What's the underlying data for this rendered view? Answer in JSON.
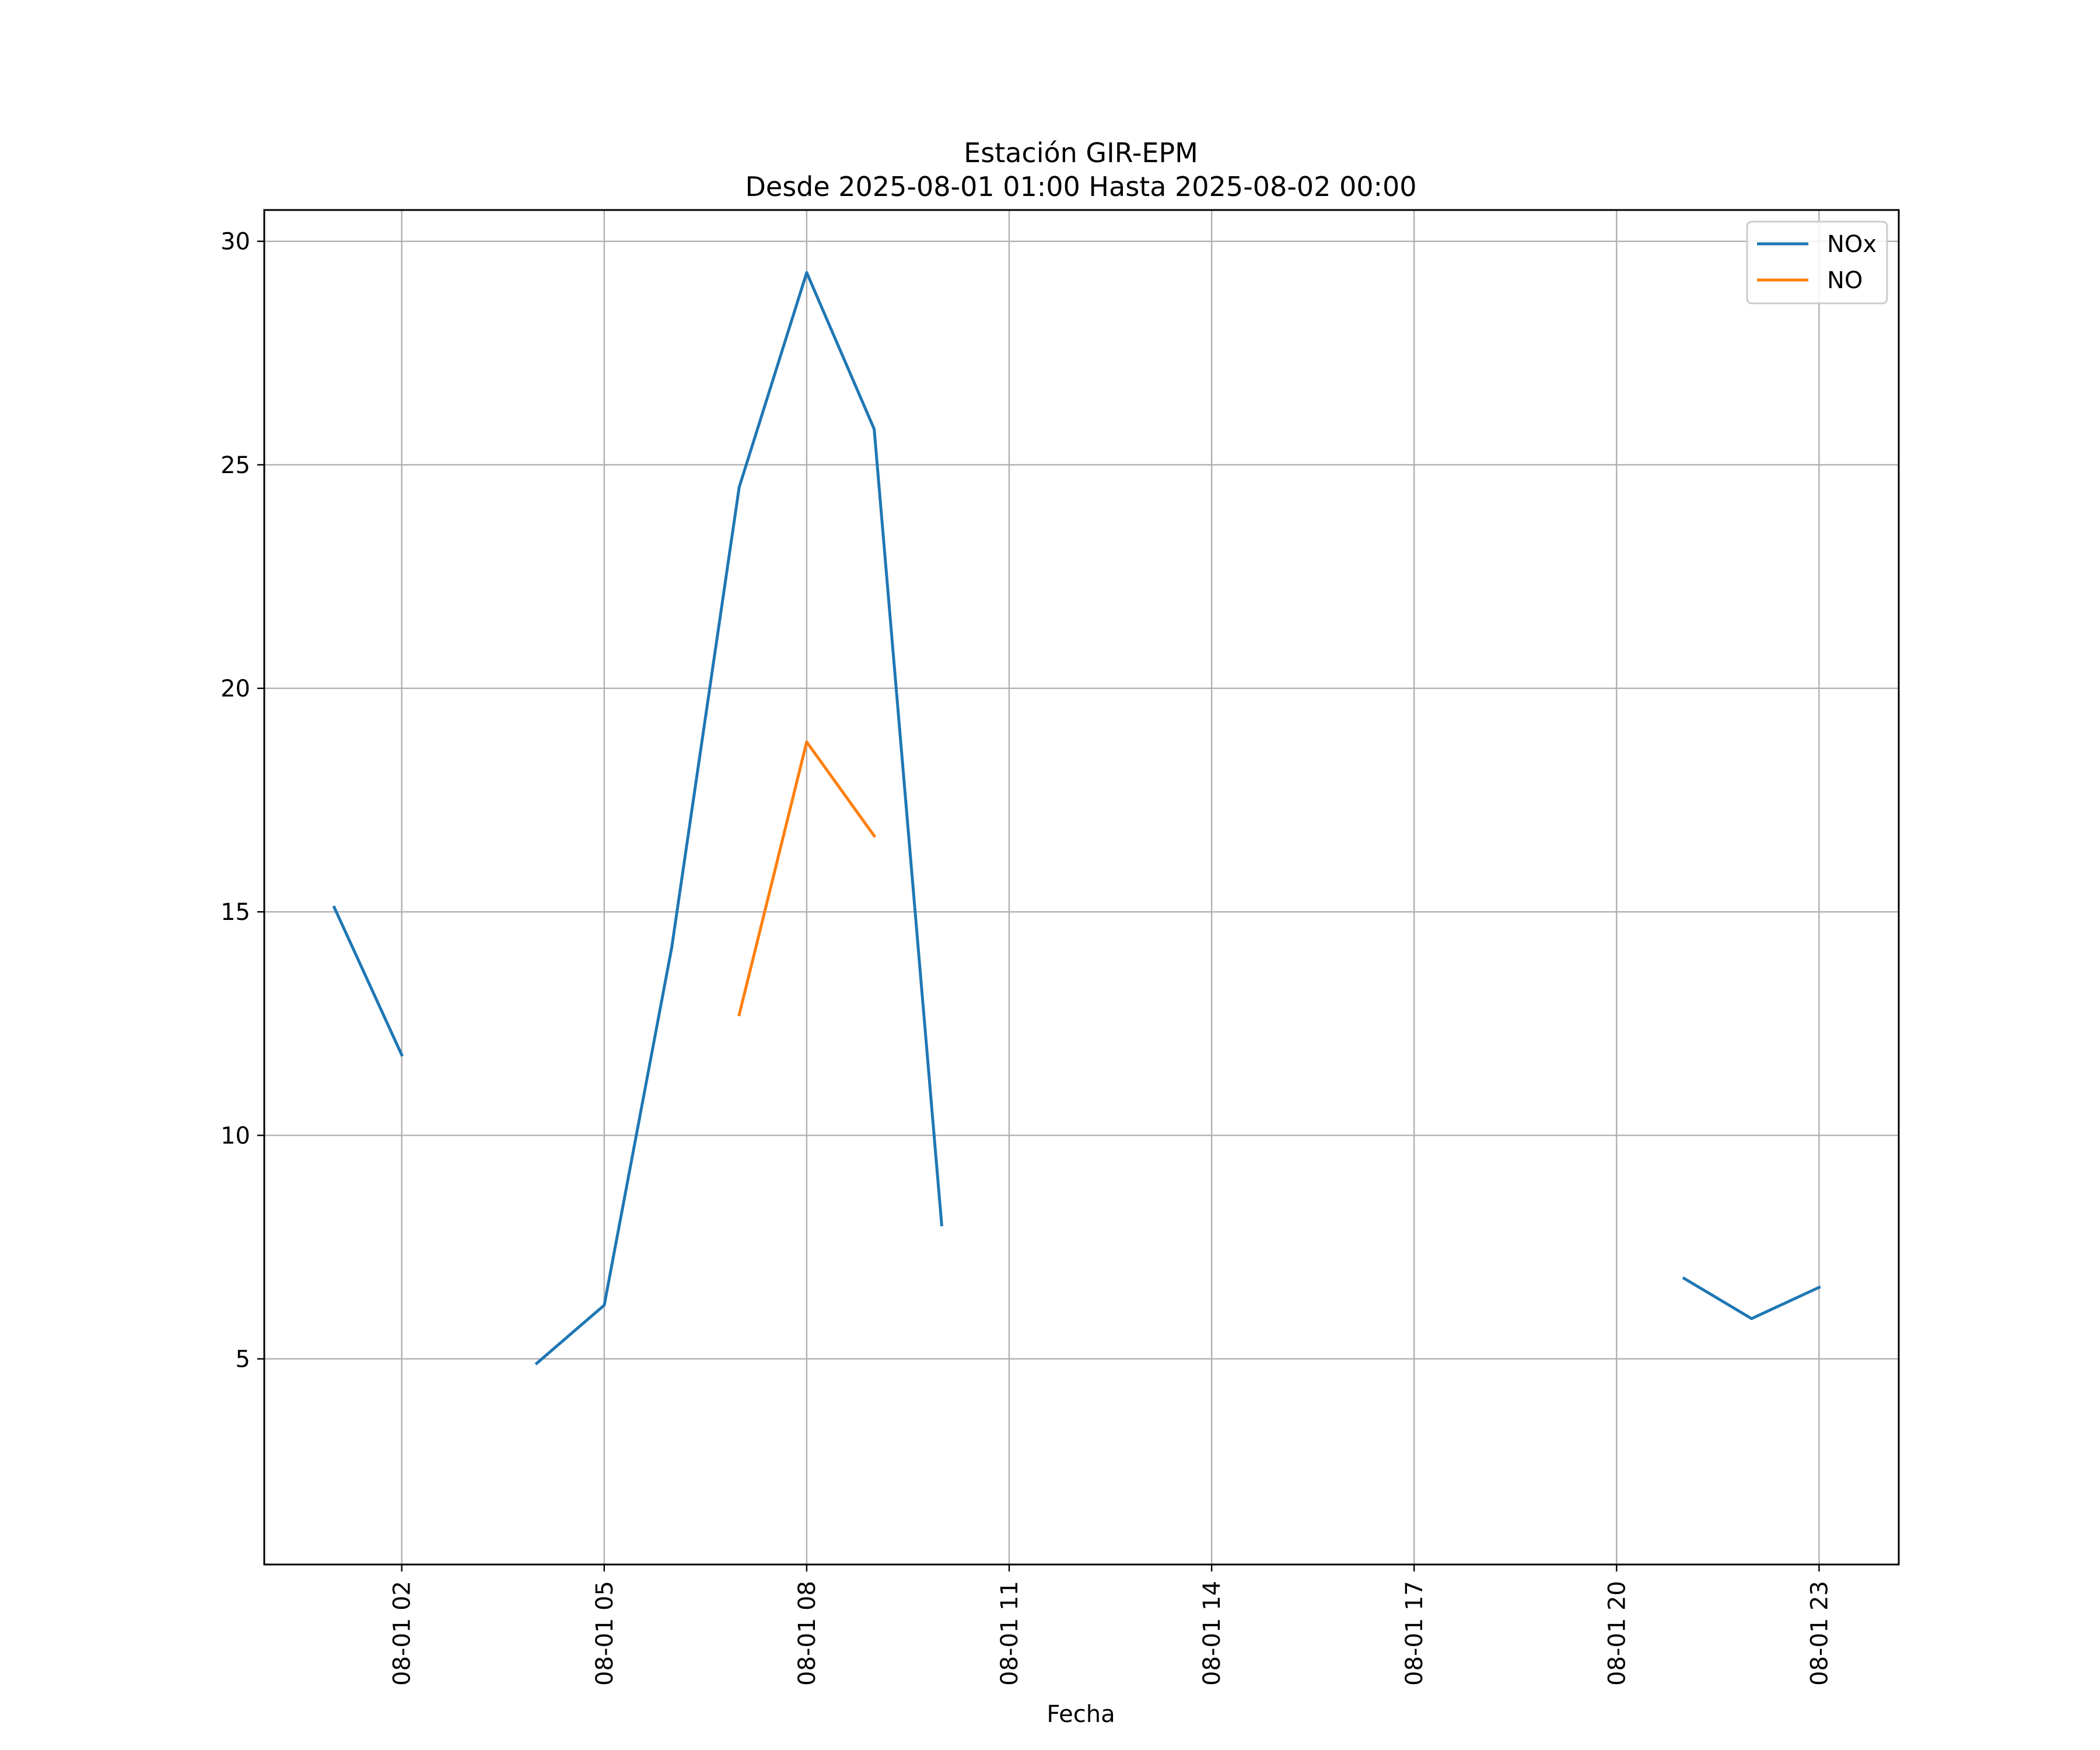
{
  "chart_data": {
    "type": "line",
    "title_line1": "Estación GIR-EPM",
    "title_line2": "Desde 2025-08-01 01:00 Hasta 2025-08-02 00:00",
    "xlabel": "Fecha",
    "ylabel": "",
    "x": [
      "08-01 01",
      "08-01 02",
      "08-01 03",
      "08-01 04",
      "08-01 05",
      "08-01 06",
      "08-01 07",
      "08-01 08",
      "08-01 09",
      "08-01 10",
      "08-01 11",
      "08-01 12",
      "08-01 13",
      "08-01 14",
      "08-01 15",
      "08-01 16",
      "08-01 17",
      "08-01 18",
      "08-01 19",
      "08-01 20",
      "08-01 21",
      "08-01 22",
      "08-01 23",
      "08-02 00"
    ],
    "x_ticks": [
      "08-01 02",
      "08-01 05",
      "08-01 08",
      "08-01 11",
      "08-01 14",
      "08-01 17",
      "08-01 20",
      "08-01 23"
    ],
    "y_ticks": [
      5,
      10,
      15,
      20,
      25,
      30
    ],
    "ylim": [
      0.4,
      30.7
    ],
    "grid": true,
    "legend_position": "top-right",
    "series": [
      {
        "name": "NOx",
        "color": "#1f77b4",
        "values": [
          15.1,
          11.8,
          null,
          4.9,
          6.2,
          14.2,
          24.5,
          29.3,
          25.8,
          8.0,
          null,
          null,
          null,
          null,
          null,
          null,
          null,
          null,
          null,
          null,
          6.8,
          5.9,
          6.6,
          null
        ]
      },
      {
        "name": "NO",
        "color": "#ff7f0e",
        "values": [
          null,
          null,
          null,
          null,
          null,
          null,
          12.7,
          18.8,
          16.7,
          null,
          null,
          null,
          null,
          null,
          null,
          null,
          null,
          null,
          null,
          null,
          null,
          null,
          null,
          null
        ]
      }
    ]
  }
}
